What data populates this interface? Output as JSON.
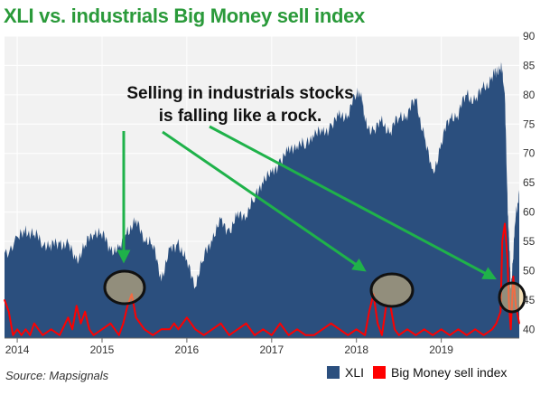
{
  "title": "XLI vs. industrials Big Money sell index",
  "source": "Source: Mapsignals",
  "annotation": [
    "Selling in industrials stocks",
    "is falling like a rock."
  ],
  "colors": {
    "xli": "#2b4f7e",
    "sell": "#ff0000",
    "arrow": "#1fb24a",
    "title": "#2a9a3a",
    "circle_fill": "#e8c27a"
  },
  "chart_data": {
    "type": "area",
    "title": "XLI vs. industrials Big Money sell index",
    "xlabel": "",
    "ylabel": "",
    "xlim": [
      2013.85,
      2019.92
    ],
    "ylim": [
      38.5,
      90
    ],
    "x_ticks": [
      "2014",
      "2015",
      "2016",
      "2017",
      "2018",
      "2019"
    ],
    "x_tick_values": [
      2014,
      2015,
      2016,
      2017,
      2018,
      2019
    ],
    "y_ticks": [
      40,
      45,
      50,
      55,
      60,
      65,
      70,
      75,
      80,
      85,
      90
    ],
    "grid": true,
    "legend": {
      "position": "bottom-right",
      "entries": [
        "XLI",
        "Big Money sell index"
      ]
    },
    "series": [
      {
        "name": "XLI",
        "type": "area",
        "x": [
          2013.85,
          2014.0,
          2014.1,
          2014.2,
          2014.3,
          2014.4,
          2014.5,
          2014.6,
          2014.7,
          2014.8,
          2014.9,
          2015.0,
          2015.1,
          2015.2,
          2015.3,
          2015.4,
          2015.5,
          2015.6,
          2015.7,
          2015.8,
          2015.9,
          2016.0,
          2016.1,
          2016.2,
          2016.3,
          2016.4,
          2016.5,
          2016.6,
          2016.7,
          2016.8,
          2016.9,
          2017.0,
          2017.1,
          2017.2,
          2017.3,
          2017.4,
          2017.5,
          2017.6,
          2017.7,
          2017.8,
          2017.9,
          2018.0,
          2018.05,
          2018.1,
          2018.2,
          2018.3,
          2018.4,
          2018.5,
          2018.6,
          2018.7,
          2018.8,
          2018.9,
          2019.0,
          2019.1,
          2019.2,
          2019.3,
          2019.4,
          2019.5,
          2019.6,
          2019.65,
          2019.7,
          2019.72,
          2019.75,
          2019.78,
          2019.8,
          2019.82,
          2019.85,
          2019.88,
          2019.92
        ],
        "values": [
          53,
          55,
          57,
          56,
          55,
          54,
          55,
          54,
          52,
          54,
          57,
          56,
          54,
          53,
          57,
          58,
          56,
          54,
          49,
          53,
          55,
          51,
          48,
          52,
          56,
          58,
          57,
          59,
          60,
          62,
          66,
          66,
          69,
          70,
          72,
          71,
          74,
          73,
          75,
          76,
          77,
          80,
          81,
          75,
          74,
          75,
          74,
          76,
          77,
          79,
          73,
          66,
          72,
          76,
          77,
          80,
          79,
          81,
          83,
          84,
          85,
          84,
          80,
          62,
          55,
          47,
          53,
          60,
          63
        ]
      },
      {
        "name": "Big Money sell index",
        "type": "line",
        "x": [
          2013.85,
          2013.9,
          2013.95,
          2014.0,
          2014.05,
          2014.1,
          2014.15,
          2014.2,
          2014.3,
          2014.4,
          2014.5,
          2014.6,
          2014.65,
          2014.7,
          2014.75,
          2014.8,
          2014.85,
          2014.9,
          2015.0,
          2015.1,
          2015.2,
          2015.25,
          2015.3,
          2015.35,
          2015.4,
          2015.5,
          2015.6,
          2015.7,
          2015.8,
          2015.85,
          2015.9,
          2016.0,
          2016.1,
          2016.2,
          2016.3,
          2016.4,
          2016.5,
          2016.6,
          2016.7,
          2016.8,
          2016.9,
          2017.0,
          2017.1,
          2017.2,
          2017.3,
          2017.4,
          2017.5,
          2017.6,
          2017.7,
          2017.8,
          2017.9,
          2018.0,
          2018.1,
          2018.15,
          2018.2,
          2018.25,
          2018.3,
          2018.35,
          2018.4,
          2018.45,
          2018.5,
          2018.6,
          2018.7,
          2018.8,
          2018.9,
          2019.0,
          2019.1,
          2019.2,
          2019.3,
          2019.4,
          2019.5,
          2019.6,
          2019.65,
          2019.7,
          2019.72,
          2019.75,
          2019.78,
          2019.8,
          2019.82,
          2019.85,
          2019.88,
          2019.92
        ],
        "values": [
          45,
          43,
          39,
          40,
          39,
          40,
          39,
          41,
          39,
          40,
          39,
          42,
          40,
          44,
          41,
          43,
          40,
          39,
          40,
          41,
          39,
          41,
          44,
          46,
          42,
          40,
          39,
          40,
          40,
          41,
          40,
          42,
          40,
          39,
          40,
          41,
          39,
          40,
          41,
          39,
          40,
          39,
          41,
          39,
          40,
          39,
          39,
          40,
          41,
          40,
          39,
          40,
          39,
          43,
          46,
          41,
          39,
          44,
          44,
          40,
          39,
          40,
          39,
          40,
          39,
          40,
          39,
          40,
          39,
          40,
          39,
          40,
          41,
          43,
          55,
          58,
          52,
          44,
          40,
          49,
          44,
          41
        ]
      }
    ],
    "annotations": [
      "Selling in industrials stocks is falling like a rock."
    ]
  }
}
